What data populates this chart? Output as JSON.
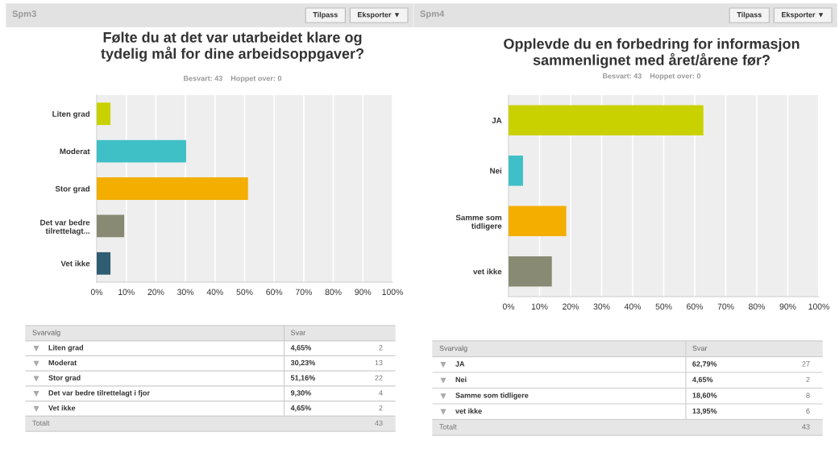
{
  "chart_data": [
    {
      "type": "bar",
      "orientation": "horizontal",
      "title": "Følte du at det var utarbeidet klare og\ntydelig mål for dine arbeidsoppgaver?",
      "subtitle": "Besvart: 43    Hoppet over: 0",
      "categories": [
        "Liten grad",
        "Moderat",
        "Stor grad",
        "Det var bedre\ntilrettelagt...",
        "Vet ikke"
      ],
      "values": [
        4.65,
        30.23,
        51.16,
        9.3,
        4.65
      ],
      "colors": [
        "#c9d200",
        "#3fbfc6",
        "#f3ae00",
        "#898a74",
        "#2f5d72"
      ],
      "xlim": [
        0,
        100
      ],
      "xticks": [
        {
          "value": 0,
          "label": "0%"
        },
        {
          "value": 10,
          "label": "10%"
        },
        {
          "value": 20,
          "label": "20%"
        },
        {
          "value": 30,
          "label": "30%"
        },
        {
          "value": 40,
          "label": "40%"
        },
        {
          "value": 50,
          "label": "50%"
        },
        {
          "value": 60,
          "label": "60%"
        },
        {
          "value": 70,
          "label": "70%"
        },
        {
          "value": 80,
          "label": "80%"
        },
        {
          "value": 90,
          "label": "90%"
        },
        {
          "value": 100,
          "label": "100%"
        }
      ],
      "grid": "x",
      "annotations": [
        "Spm3",
        "Tilpass",
        "Eksporter ▼",
        "Svarvalg",
        "Svar",
        "Liten grad",
        "4,65%",
        "2",
        "Moderat",
        "30,23%",
        "13",
        "Stor grad",
        "51,16%",
        "22",
        "Det var bedre tilrettelagt i fjor",
        "9,30%",
        "4",
        "Vet ikke",
        "4,65%",
        "2",
        "Totalt",
        "43"
      ]
    },
    {
      "type": "bar",
      "orientation": "horizontal",
      "title": "Opplevde du en forbedring for informasjon\nsammenlignet med året/årene før?",
      "subtitle": "Besvart: 43    Hoppet over: 0",
      "categories": [
        "JA",
        "Nei",
        "Samme som\ntidligere",
        "vet ikke"
      ],
      "values": [
        62.79,
        4.65,
        18.6,
        13.95
      ],
      "colors": [
        "#c9d200",
        "#3fbfc6",
        "#f3ae00",
        "#898a74"
      ],
      "xlim": [
        0,
        100
      ],
      "xticks": [
        {
          "value": 0,
          "label": "0%"
        },
        {
          "value": 10,
          "label": "10%"
        },
        {
          "value": 20,
          "label": "20%"
        },
        {
          "value": 30,
          "label": "30%"
        },
        {
          "value": 40,
          "label": "40%"
        },
        {
          "value": 50,
          "label": "50%"
        },
        {
          "value": 60,
          "label": "60%"
        },
        {
          "value": 70,
          "label": "70%"
        },
        {
          "value": 80,
          "label": "80%"
        },
        {
          "value": 90,
          "label": "90%"
        },
        {
          "value": 100,
          "label": "100%"
        }
      ],
      "grid": "x",
      "annotations": [
        "Spm4",
        "Tilpass",
        "Eksporter ▼",
        "Svarvalg",
        "Svar",
        "JA",
        "62,79%",
        "27",
        "Nei",
        "4,65%",
        "2",
        "Samme som tidligere",
        "18,60%",
        "8",
        "vet ikke",
        "13,95%",
        "6",
        "Totalt",
        "43"
      ]
    }
  ]
}
